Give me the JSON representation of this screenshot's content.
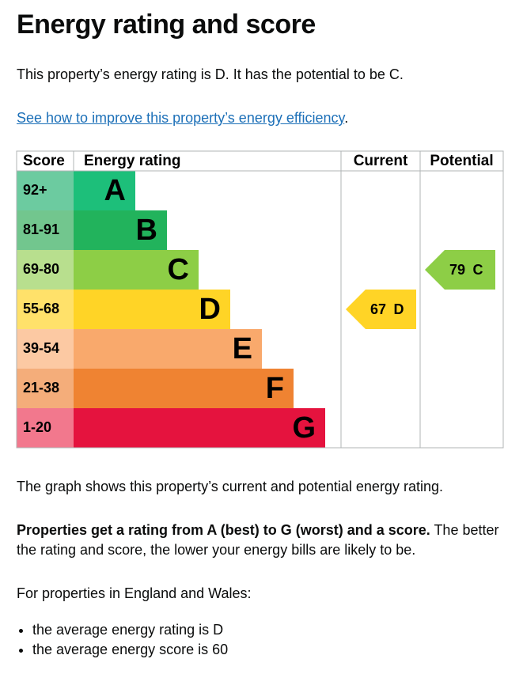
{
  "heading": "Energy rating and score",
  "summary": "This property’s energy rating is D. It has the potential to be C.",
  "link": {
    "text": "See how to improve this property’s energy efficiency",
    "after": "."
  },
  "epc": {
    "headers": [
      "Score",
      "Energy rating",
      "Current",
      "Potential"
    ],
    "bands": [
      {
        "range": "92+",
        "letter": "A",
        "color": "#1dbf7a",
        "score_color": "#6ccba0"
      },
      {
        "range": "81-91",
        "letter": "B",
        "color": "#22b35c",
        "score_color": "#72c68e"
      },
      {
        "range": "69-80",
        "letter": "C",
        "color": "#8dce46",
        "score_color": "#b8df8e"
      },
      {
        "range": "55-68",
        "letter": "D",
        "color": "#ffd426",
        "score_color": "#ffe16a"
      },
      {
        "range": "39-54",
        "letter": "E",
        "color": "#f9a96c",
        "score_color": "#fcc9a3"
      },
      {
        "range": "21-38",
        "letter": "F",
        "color": "#ef8332",
        "score_color": "#f4ad7a"
      },
      {
        "range": "1-20",
        "letter": "G",
        "color": "#e5133e",
        "score_color": "#f2788d"
      }
    ],
    "current": {
      "score": 67,
      "letter": "D"
    },
    "potential": {
      "score": 79,
      "letter": "C"
    }
  },
  "graph_note": "The graph shows this property’s current and potential energy rating.",
  "properties": {
    "bold": "Properties get a rating from A (best) to G (worst) and a score.",
    "text": "The better the rating and score, the lower your energy bills are likely to be."
  },
  "region_note": "For properties in England and Wales:",
  "averages": [
    "the average energy rating is D",
    "the average energy score is 60"
  ]
}
